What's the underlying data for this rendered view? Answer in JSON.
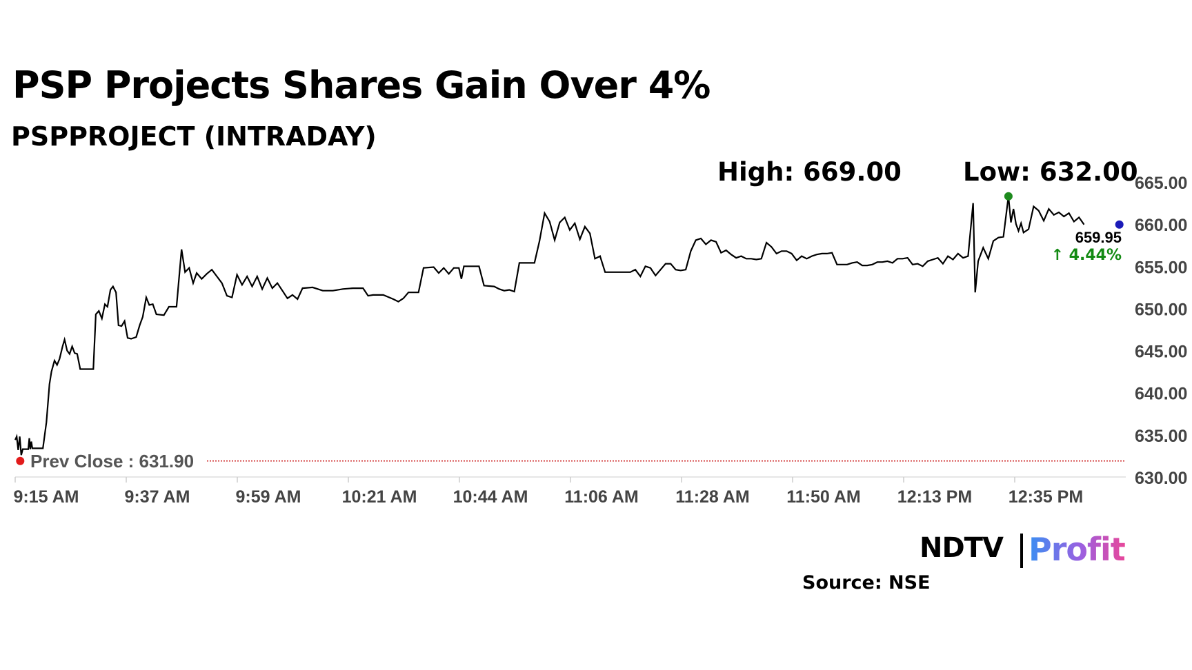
{
  "chart_data": {
    "type": "line",
    "title": "PSP Projects Shares Gain Over 4%",
    "subtitle": "PSPPROJECT (INTRADAY)",
    "stats": {
      "high": "High: 669.00",
      "low": "Low: 632.00"
    },
    "prev_close": {
      "label": "Prev Close : 631.90",
      "value": 631.9
    },
    "last": {
      "price": "659.95",
      "change": "↑ 4.44%",
      "value": 659.95
    },
    "ylim": [
      630,
      665
    ],
    "y_ticks": [
      "665.00",
      "660.00",
      "655.00",
      "650.00",
      "645.00",
      "640.00",
      "635.00",
      "630.00"
    ],
    "x_ticks": [
      "9:15 AM",
      "9:37 AM",
      "9:59 AM",
      "10:21 AM",
      "10:44 AM",
      "11:06 AM",
      "11:28 AM",
      "11:50 AM",
      "12:13 PM",
      "12:35 PM"
    ],
    "x_minutes": [
      0,
      220
    ],
    "series": [
      {
        "color": "#000000",
        "points": [
          [
            0,
            634.4
          ],
          [
            0.3,
            634.8
          ],
          [
            0.6,
            633.2
          ],
          [
            0.9,
            634.8
          ],
          [
            1.2,
            632.6
          ],
          [
            1.5,
            633.3
          ],
          [
            1.8,
            633.3
          ],
          [
            2.6,
            633.3
          ],
          [
            2.8,
            634.6
          ],
          [
            3.0,
            633.3
          ],
          [
            3.2,
            634.2
          ],
          [
            3.4,
            633.4
          ],
          [
            4.0,
            633.4
          ],
          [
            5.5,
            633.4
          ],
          [
            6.2,
            636.5
          ],
          [
            6.8,
            641.0
          ],
          [
            7.2,
            642.5
          ],
          [
            7.8,
            643.8
          ],
          [
            8.3,
            643.3
          ],
          [
            8.8,
            644.0
          ],
          [
            9.4,
            645.5
          ],
          [
            9.8,
            646.3
          ],
          [
            10.3,
            645.0
          ],
          [
            10.8,
            644.6
          ],
          [
            11.3,
            645.5
          ],
          [
            11.8,
            644.7
          ],
          [
            12.3,
            644.6
          ],
          [
            12.9,
            642.8
          ],
          [
            14.0,
            642.8
          ],
          [
            15.5,
            642.8
          ],
          [
            16.0,
            649.3
          ],
          [
            16.6,
            649.7
          ],
          [
            17.2,
            648.8
          ],
          [
            17.8,
            650.5
          ],
          [
            18.3,
            650.2
          ],
          [
            18.9,
            652.2
          ],
          [
            19.4,
            652.6
          ],
          [
            20.0,
            651.9
          ],
          [
            20.5,
            648.0
          ],
          [
            21.1,
            647.9
          ],
          [
            21.7,
            648.5
          ],
          [
            22.3,
            646.5
          ],
          [
            23.0,
            646.4
          ],
          [
            24.0,
            646.6
          ],
          [
            24.7,
            648.0
          ],
          [
            25.3,
            649.0
          ],
          [
            26.0,
            651.3
          ],
          [
            26.6,
            650.4
          ],
          [
            27.3,
            650.5
          ],
          [
            28.0,
            649.3
          ],
          [
            29.5,
            649.2
          ],
          [
            30.5,
            650.2
          ],
          [
            32.0,
            650.2
          ],
          [
            33.0,
            657.0
          ],
          [
            33.7,
            654.3
          ],
          [
            34.5,
            654.8
          ],
          [
            35.3,
            653.0
          ],
          [
            36.0,
            654.2
          ],
          [
            37.0,
            653.5
          ],
          [
            38.0,
            654.1
          ],
          [
            39.0,
            654.6
          ],
          [
            40.0,
            653.8
          ],
          [
            41.0,
            653.0
          ],
          [
            42.0,
            651.5
          ],
          [
            43.0,
            651.3
          ],
          [
            44.0,
            654.0
          ],
          [
            45.0,
            652.8
          ],
          [
            46.0,
            653.8
          ],
          [
            47.0,
            652.6
          ],
          [
            48.0,
            653.8
          ],
          [
            49.0,
            652.3
          ],
          [
            50.0,
            653.6
          ],
          [
            51.0,
            652.4
          ],
          [
            52.0,
            653.0
          ],
          [
            53.0,
            652.1
          ],
          [
            54.0,
            651.2
          ],
          [
            55.0,
            651.6
          ],
          [
            56.0,
            651.1
          ],
          [
            57.0,
            652.4
          ],
          [
            59.0,
            652.5
          ],
          [
            61.0,
            652.1
          ],
          [
            63.0,
            652.1
          ],
          [
            65.0,
            652.3
          ],
          [
            67.0,
            652.4
          ],
          [
            69.0,
            652.4
          ],
          [
            70.0,
            651.5
          ],
          [
            71.0,
            651.6
          ],
          [
            73.0,
            651.6
          ],
          [
            75.0,
            651.1
          ],
          [
            76.0,
            650.8
          ],
          [
            77.0,
            651.2
          ],
          [
            78.0,
            651.9
          ],
          [
            80.0,
            651.9
          ],
          [
            81.0,
            654.8
          ],
          [
            83.0,
            654.9
          ],
          [
            84.0,
            654.2
          ],
          [
            85.0,
            654.8
          ],
          [
            86.0,
            654.1
          ],
          [
            87.0,
            654.8
          ],
          [
            88.0,
            654.8
          ],
          [
            88.5,
            653.5
          ],
          [
            89.0,
            655.0
          ],
          [
            91.0,
            655.0
          ],
          [
            92.0,
            655.0
          ],
          [
            93.0,
            652.7
          ],
          [
            95.0,
            652.6
          ],
          [
            96.0,
            652.3
          ],
          [
            97.0,
            652.1
          ],
          [
            98.0,
            652.2
          ],
          [
            99.0,
            652.0
          ],
          [
            100.0,
            655.4
          ],
          [
            102.0,
            655.4
          ],
          [
            103.0,
            655.4
          ],
          [
            104.0,
            658.0
          ],
          [
            105.0,
            661.3
          ],
          [
            106.0,
            660.3
          ],
          [
            107.0,
            658.1
          ],
          [
            108.0,
            660.2
          ],
          [
            109.0,
            660.8
          ],
          [
            110.0,
            659.3
          ],
          [
            111.0,
            660.1
          ],
          [
            112.0,
            658.2
          ],
          [
            113.0,
            659.7
          ],
          [
            114.0,
            658.9
          ],
          [
            115.0,
            655.9
          ],
          [
            116.0,
            656.2
          ],
          [
            117.0,
            654.3
          ],
          [
            118.0,
            654.3
          ],
          [
            120.0,
            654.3
          ],
          [
            122.0,
            654.3
          ],
          [
            123.0,
            654.6
          ],
          [
            124.0,
            653.8
          ],
          [
            125.0,
            655.0
          ],
          [
            126.0,
            654.8
          ],
          [
            127.0,
            653.9
          ],
          [
            128.0,
            654.6
          ],
          [
            129.0,
            655.3
          ],
          [
            130.0,
            655.3
          ],
          [
            131.0,
            654.6
          ],
          [
            132.0,
            654.5
          ],
          [
            133.0,
            654.6
          ],
          [
            134.0,
            656.8
          ],
          [
            135.0,
            658.1
          ],
          [
            136.0,
            658.3
          ],
          [
            137.0,
            657.6
          ],
          [
            138.0,
            658.1
          ],
          [
            139.0,
            657.9
          ],
          [
            140.0,
            656.6
          ],
          [
            141.0,
            656.9
          ],
          [
            142.0,
            656.4
          ],
          [
            143.0,
            656.0
          ],
          [
            144.0,
            656.2
          ],
          [
            145.0,
            655.9
          ],
          [
            146.0,
            655.9
          ],
          [
            147.0,
            655.8
          ],
          [
            148.0,
            655.9
          ],
          [
            149.0,
            657.8
          ],
          [
            150.0,
            657.3
          ],
          [
            151.0,
            656.5
          ],
          [
            152.0,
            656.8
          ],
          [
            153.0,
            656.8
          ],
          [
            154.0,
            656.5
          ],
          [
            155.0,
            655.7
          ],
          [
            156.0,
            656.2
          ],
          [
            157.0,
            655.9
          ],
          [
            158.0,
            656.2
          ],
          [
            159.0,
            656.4
          ],
          [
            160.0,
            656.5
          ],
          [
            161.0,
            656.5
          ],
          [
            162.0,
            656.6
          ],
          [
            163.0,
            655.2
          ],
          [
            164.0,
            655.2
          ],
          [
            165.0,
            655.2
          ],
          [
            166.0,
            655.4
          ],
          [
            167.0,
            655.5
          ],
          [
            168.0,
            655.1
          ],
          [
            169.0,
            655.1
          ],
          [
            170.0,
            655.2
          ],
          [
            171.0,
            655.5
          ],
          [
            172.0,
            655.5
          ],
          [
            173.0,
            655.6
          ],
          [
            174.0,
            655.4
          ],
          [
            175.0,
            655.9
          ],
          [
            176.0,
            655.9
          ],
          [
            177.0,
            656.0
          ],
          [
            178.0,
            655.2
          ],
          [
            179.0,
            655.3
          ],
          [
            180.0,
            655.0
          ],
          [
            181.0,
            655.6
          ],
          [
            182.0,
            655.8
          ],
          [
            183.0,
            656.0
          ],
          [
            184.0,
            655.3
          ],
          [
            185.0,
            656.2
          ],
          [
            186.0,
            655.8
          ],
          [
            187.0,
            656.5
          ],
          [
            188.0,
            656.0
          ],
          [
            189.0,
            656.2
          ],
          [
            190.0,
            662.5
          ],
          [
            190.4,
            651.9
          ],
          [
            191.0,
            655.6
          ],
          [
            192.0,
            657.2
          ],
          [
            193.0,
            655.9
          ],
          [
            194.0,
            658.0
          ],
          [
            195.0,
            658.4
          ],
          [
            196.0,
            658.5
          ],
          [
            197.0,
            663.3
          ],
          [
            197.5,
            660.2
          ],
          [
            198.0,
            661.8
          ],
          [
            198.5,
            660.0
          ],
          [
            199.0,
            659.2
          ],
          [
            199.5,
            660.1
          ],
          [
            200.0,
            659.0
          ],
          [
            201.0,
            659.4
          ],
          [
            202.0,
            662.1
          ],
          [
            203.0,
            661.6
          ],
          [
            204.0,
            660.4
          ],
          [
            205.0,
            661.8
          ],
          [
            206.0,
            661.1
          ],
          [
            207.0,
            661.4
          ],
          [
            208.0,
            660.9
          ],
          [
            209.0,
            661.3
          ],
          [
            210.0,
            660.3
          ],
          [
            211.0,
            660.8
          ],
          [
            212.0,
            659.95
          ]
        ]
      }
    ],
    "markers": [
      {
        "name": "open",
        "x": 1.0,
        "y": 631.9,
        "color": "#e21b1b"
      },
      {
        "name": "high",
        "x": 197.0,
        "y": 663.3,
        "color": "#1d8a1d"
      },
      {
        "name": "last",
        "x": 219.0,
        "y": 659.95,
        "color": "#1b1bb8"
      }
    ],
    "colors": {
      "line": "#000000",
      "prev_close_line": "#cc2222",
      "up": "#138a13"
    },
    "legend": "none",
    "grid": false
  },
  "brand": {
    "ndtv": "NDTV",
    "profit": "Profit"
  },
  "source": "Source: NSE"
}
